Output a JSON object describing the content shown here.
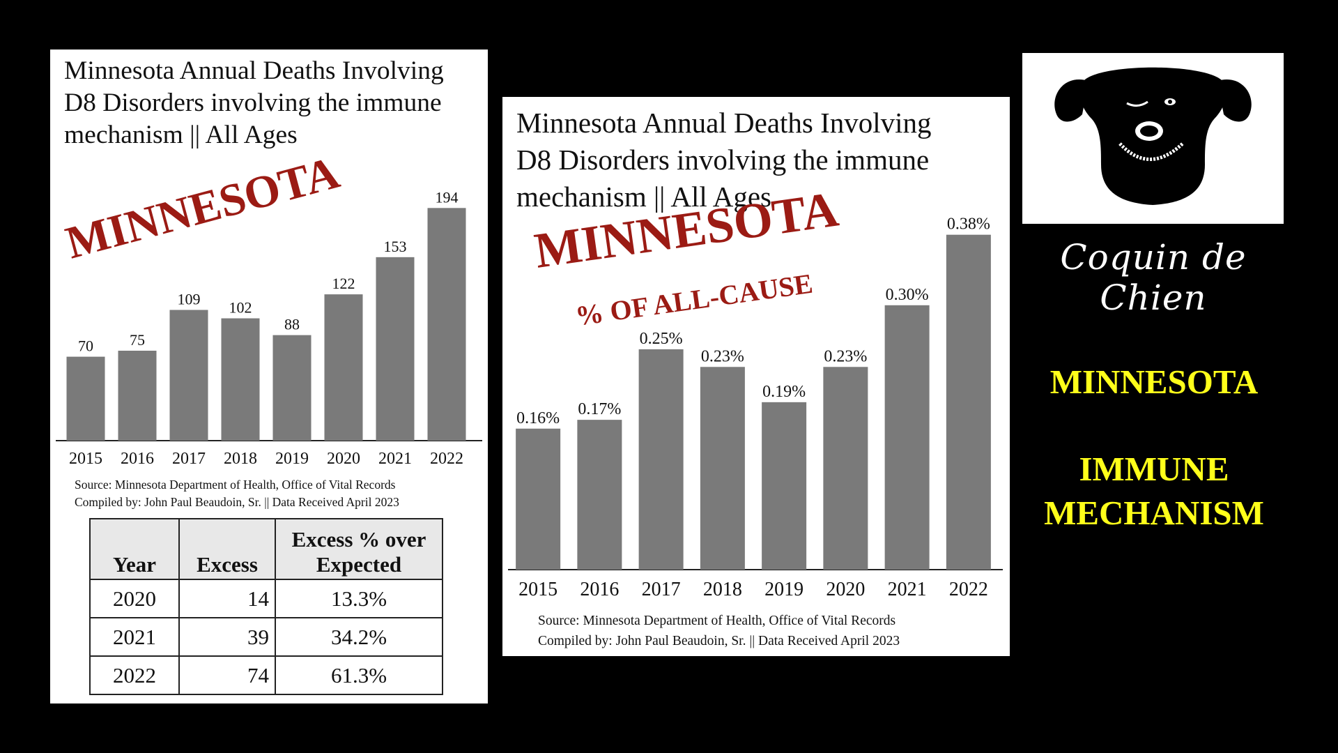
{
  "chart_data": [
    {
      "type": "bar",
      "title": "Minnesota Annual Deaths Involving D8 Disorders involving the immune mechanism || All Ages",
      "stamp": "MINNESOTA",
      "categories": [
        "2015",
        "2016",
        "2017",
        "2018",
        "2019",
        "2020",
        "2021",
        "2022"
      ],
      "values": [
        70,
        75,
        109,
        102,
        88,
        122,
        153,
        194
      ],
      "data_labels": [
        "70",
        "75",
        "109",
        "102",
        "88",
        "122",
        "153",
        "194"
      ],
      "bar_color": "#7a7a7a",
      "source": "Source:  Minnesota Department of Health, Office of Vital Records",
      "compiled": "Compiled by:  John Paul Beaudoin, Sr. || Data Received April 2023",
      "table": {
        "headers": [
          "Year",
          "Excess",
          "Excess % over Expected"
        ],
        "rows": [
          [
            "2020",
            "14",
            "13.3%"
          ],
          [
            "2021",
            "39",
            "34.2%"
          ],
          [
            "2022",
            "74",
            "61.3%"
          ]
        ]
      }
    },
    {
      "type": "bar",
      "title": "Minnesota Annual Deaths Involving D8 Disorders involving the immune mechanism || All Ages",
      "stamp": "MINNESOTA",
      "stamp_sub": "% OF ALL-CAUSE",
      "categories": [
        "2015",
        "2016",
        "2017",
        "2018",
        "2019",
        "2020",
        "2021",
        "2022"
      ],
      "values": [
        0.16,
        0.17,
        0.25,
        0.23,
        0.19,
        0.23,
        0.3,
        0.38
      ],
      "data_labels": [
        "0.16%",
        "0.17%",
        "0.25%",
        "0.23%",
        "0.19%",
        "0.23%",
        "0.30%",
        "0.38%"
      ],
      "bar_color": "#7a7a7a",
      "source": "Source:  Minnesota Department of Health, Office of Vital Records",
      "compiled": "Compiled by:  John Paul Beaudoin, Sr. || Data Received April 2023"
    }
  ],
  "branding": {
    "logo_icon": "winking-dog-icon",
    "name": "Coquin de Chien"
  },
  "side": {
    "state": "MINNESOTA",
    "topic_line1": "IMMUNE",
    "topic_line2": "MECHANISM"
  },
  "colors": {
    "stamp_red": "#9b1b14",
    "side_yellow": "#ffff1a",
    "background": "#000000"
  }
}
